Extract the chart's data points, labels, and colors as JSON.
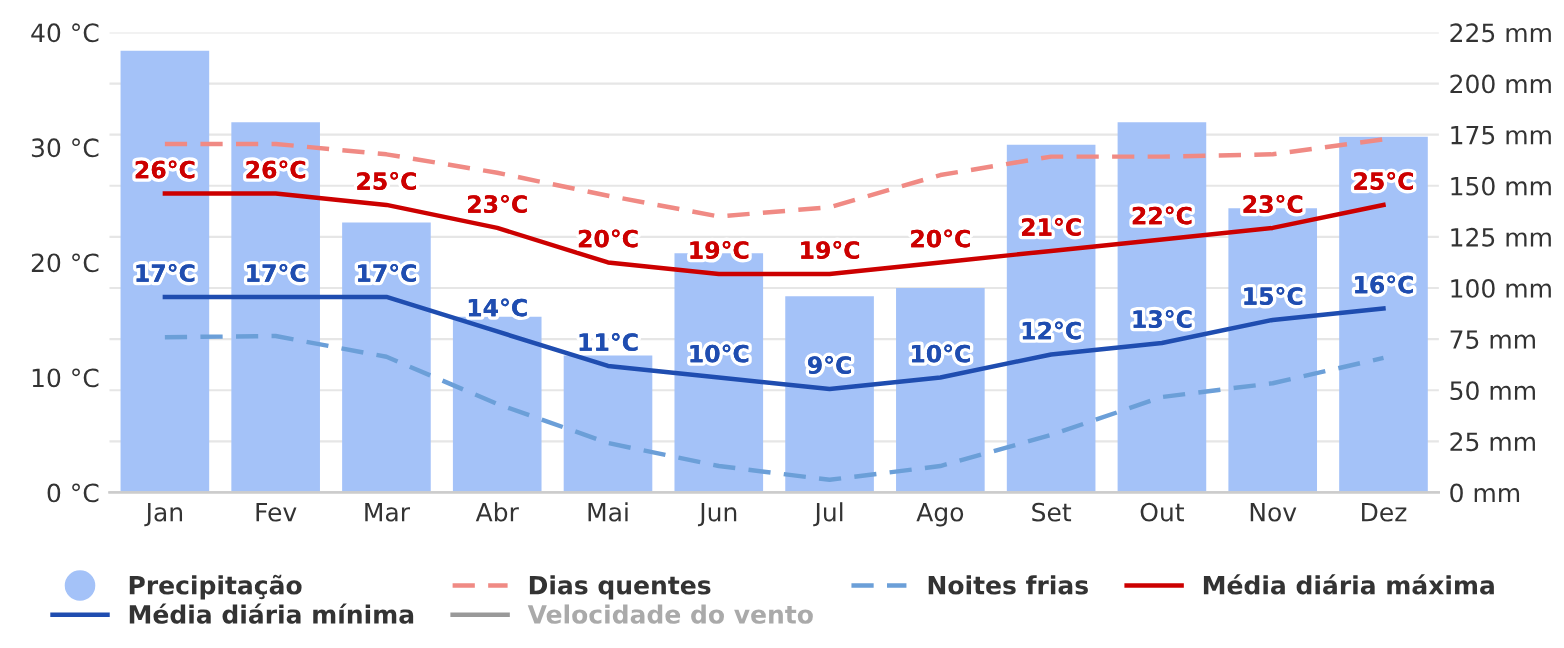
{
  "chart_data": {
    "type": "line",
    "categories": [
      "Jan",
      "Fev",
      "Mar",
      "Abr",
      "Mai",
      "Jun",
      "Jul",
      "Ago",
      "Set",
      "Out",
      "Nov",
      "Dez"
    ],
    "series": [
      {
        "name": "Precipitação",
        "type": "bar",
        "axis": "y2",
        "color": "#a4c2f8",
        "values": [
          216,
          181,
          132,
          86,
          67,
          117,
          96,
          100,
          170,
          181,
          139,
          174
        ]
      },
      {
        "name": "Dias quentes",
        "line_style": "dashed",
        "color": "#f08a84",
        "values": [
          30.3,
          30.3,
          29.4,
          27.8,
          25.8,
          24.0,
          24.8,
          27.6,
          29.2,
          29.2,
          29.4,
          30.7
        ]
      },
      {
        "name": "Noites frias",
        "line_style": "dashed",
        "color": "#6b9fd8",
        "values": [
          13.5,
          13.6,
          11.8,
          7.7,
          4.3,
          2.3,
          1.1,
          2.3,
          5.0,
          8.3,
          9.5,
          11.7
        ]
      },
      {
        "name": "Média diária máxima",
        "line_style": "solid",
        "color": "#cc0000",
        "values": [
          26,
          26,
          25,
          23,
          20,
          19,
          19,
          20,
          21,
          22,
          23,
          25
        ],
        "value_labels": [
          "26°C",
          "26°C",
          "25°C",
          "23°C",
          "20°C",
          "19°C",
          "19°C",
          "20°C",
          "21°C",
          "22°C",
          "23°C",
          "25°C"
        ]
      },
      {
        "name": "Média diária mínima",
        "line_style": "solid",
        "color": "#1f4db0",
        "values": [
          17,
          17,
          17,
          14,
          11,
          10,
          9,
          10,
          12,
          13,
          15,
          16
        ],
        "value_labels": [
          "17°C",
          "17°C",
          "17°C",
          "14°C",
          "11°C",
          "10°C",
          "9°C",
          "10°C",
          "12°C",
          "13°C",
          "15°C",
          "16°C"
        ]
      },
      {
        "name": "Velocidade do vento",
        "line_style": "solid",
        "color": "#999999",
        "values": [
          null,
          null,
          null,
          null,
          null,
          null,
          null,
          null,
          null,
          null,
          null,
          null
        ]
      }
    ],
    "ylim": [
      0,
      40
    ],
    "yticks": [
      {
        "value": 0,
        "label": "0 °C"
      },
      {
        "value": 10,
        "label": "10 °C"
      },
      {
        "value": 20,
        "label": "20 °C"
      },
      {
        "value": 30,
        "label": "30 °C"
      },
      {
        "value": 40,
        "label": "40 °C"
      }
    ],
    "y2lim": [
      0,
      225
    ],
    "y2ticks": [
      {
        "value": 0,
        "label": "0 mm"
      },
      {
        "value": 25,
        "label": "25 mm"
      },
      {
        "value": 50,
        "label": "50 mm"
      },
      {
        "value": 75,
        "label": "75 mm"
      },
      {
        "value": 100,
        "label": "100 mm"
      },
      {
        "value": 125,
        "label": "125 mm"
      },
      {
        "value": 150,
        "label": "150 mm"
      },
      {
        "value": 175,
        "label": "175 mm"
      },
      {
        "value": 200,
        "label": "200 mm"
      },
      {
        "value": 225,
        "label": "225 mm"
      }
    ],
    "grid": "y",
    "legend": "bottom",
    "marker": "none"
  }
}
